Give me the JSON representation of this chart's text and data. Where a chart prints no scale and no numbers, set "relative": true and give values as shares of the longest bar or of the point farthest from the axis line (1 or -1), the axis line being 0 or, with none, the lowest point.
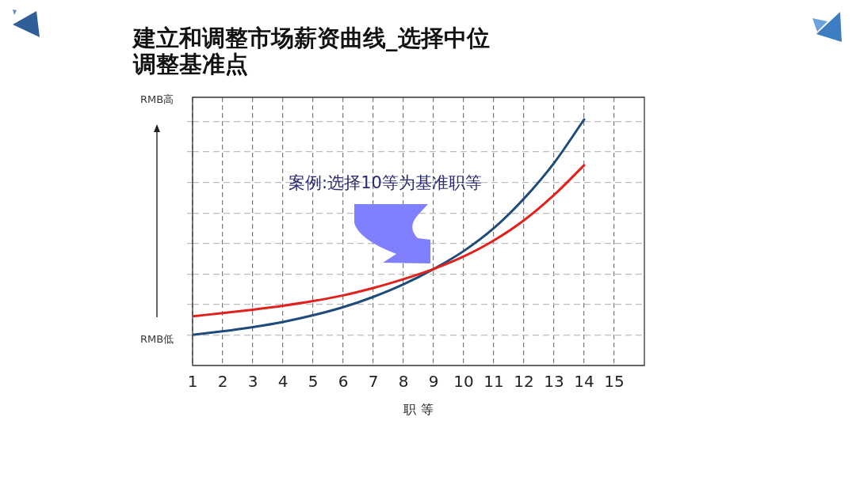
{
  "chart_data": {
    "type": "line",
    "title": "建立和调整市场薪资曲线_选择中位调整基准点",
    "xlabel": "职 等",
    "annotations": [
      "案例:选择10等为基准职等",
      "RMB高",
      "RMB低"
    ],
    "x": [
      1,
      2,
      3,
      4,
      5,
      6,
      7,
      8,
      9,
      10,
      11,
      12,
      13,
      14
    ],
    "relative": true,
    "xlim": [
      1,
      16
    ],
    "xticks": [
      1,
      2,
      3,
      4,
      5,
      6,
      7,
      8,
      9,
      10,
      11,
      12,
      13,
      14,
      15
    ],
    "grid": true,
    "series": [
      {
        "color": "#e3211c",
        "values": [
          0.2,
          0.213,
          0.227,
          0.243,
          0.262,
          0.285,
          0.315,
          0.351,
          0.392,
          0.443,
          0.508,
          0.59,
          0.693,
          0.814
        ]
      },
      {
        "color": "#1f4b7a",
        "values": [
          0.125,
          0.139,
          0.156,
          0.177,
          0.204,
          0.237,
          0.279,
          0.33,
          0.392,
          0.465,
          0.558,
          0.678,
          0.823,
          1
        ]
      }
    ]
  }
}
